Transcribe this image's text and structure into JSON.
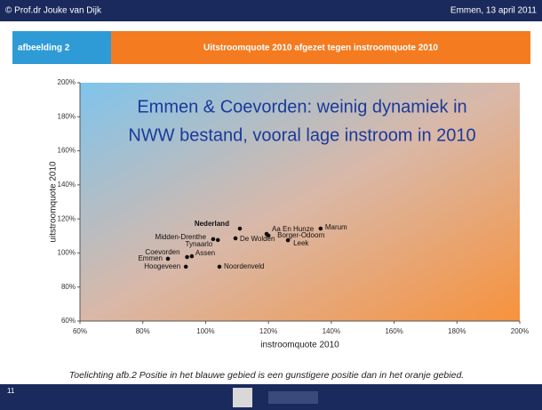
{
  "header": {
    "author": "© Prof.dr Jouke van Dijk",
    "date": "Emmen, 13 april 2011"
  },
  "panel": {
    "label": "afbeelding 2",
    "title": "Uitstroomquote 2010 afgezet tegen instroomquote 2010"
  },
  "overlay": [
    "Emmen & Coevorden: weinig dynamiek in",
    "NWW bestand, vooral lage instroom in 2010"
  ],
  "caption": "Toelichting afb.2 Positie in het blauwe gebied is een gunstigere positie dan in het oranje gebied.",
  "slide_number": "11",
  "chart_data": {
    "type": "scatter",
    "xlabel": "instroomquote 2010",
    "ylabel": "uitstroomquote 2010",
    "labels": [
      "Nederland",
      "Midden-Drenthe",
      "Tynaarlo",
      "De Wolden",
      "Aa En Hunze",
      "Borger-Odoorn",
      "Leek",
      "Marum",
      "Coevorden",
      "Assen",
      "Emmen",
      "Hoogeveen",
      "Noordenveld"
    ],
    "x": [
      110.9,
      102.4,
      103.9,
      109.5,
      119.4,
      120,
      126.2,
      136.6,
      94.1,
      95.6,
      88,
      93.7,
      104.4
    ],
    "values": [
      114.3,
      108.1,
      107.6,
      108.6,
      111.2,
      110.2,
      107.5,
      114.3,
      97.6,
      98.1,
      96.6,
      91.9,
      91.9
    ],
    "color": "#111111",
    "xlim": [
      60,
      200
    ],
    "ylim": [
      60,
      200
    ],
    "xticks": [
      {
        "value": 60,
        "label": "60%"
      },
      {
        "value": 80,
        "label": "80%"
      },
      {
        "value": 100,
        "label": "100%"
      },
      {
        "value": 120,
        "label": "120%"
      },
      {
        "value": 140,
        "label": "140%"
      },
      {
        "value": 160,
        "label": "160%"
      },
      {
        "value": 180,
        "label": "180%"
      },
      {
        "value": 200,
        "label": "200%"
      }
    ],
    "yticks": [
      {
        "value": 60,
        "label": "60%"
      },
      {
        "value": 80,
        "label": "80%"
      },
      {
        "value": 100,
        "label": "100%"
      },
      {
        "value": 120,
        "label": "120%"
      },
      {
        "value": 140,
        "label": "140%"
      },
      {
        "value": 160,
        "label": "160%"
      },
      {
        "value": 180,
        "label": "180%"
      },
      {
        "value": 200,
        "label": "200%"
      }
    ]
  }
}
